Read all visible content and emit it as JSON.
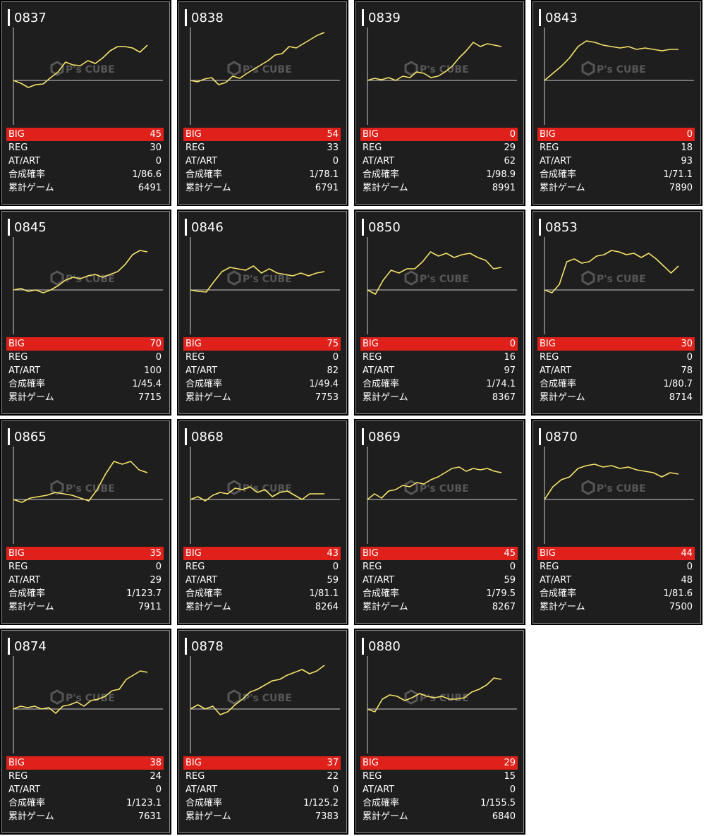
{
  "colors": {
    "line": "#f5e36a",
    "big_bar": "#e0201a",
    "panel": "#1e1e1e",
    "axis": "#cccccc",
    "text": "#ffffff"
  },
  "watermark": {
    "text": "P's CUBE",
    "icon": "cube-logo-icon"
  },
  "labels": {
    "big": "BIG",
    "reg": "REG",
    "at": "AT/ART",
    "rate": "合成確率",
    "games": "累計ゲーム"
  },
  "machines": [
    {
      "id": "0837",
      "big": "45",
      "reg": "30",
      "at": "0",
      "rate": "1/86.6",
      "games": "6491",
      "graph": [
        0,
        -4,
        -10,
        -6,
        -5,
        4,
        12,
        26,
        22,
        21,
        28,
        24,
        32,
        42,
        48,
        48,
        46,
        40,
        50
      ]
    },
    {
      "id": "0838",
      "big": "54",
      "reg": "33",
      "at": "0",
      "rate": "1/78.1",
      "games": "6791",
      "graph": [
        0,
        -2,
        2,
        4,
        -6,
        -3,
        6,
        3,
        10,
        16,
        22,
        28,
        36,
        38,
        48,
        46,
        52,
        58,
        64,
        68
      ]
    },
    {
      "id": "0839",
      "big": "0",
      "reg": "29",
      "at": "62",
      "rate": "1/98.9",
      "games": "8991",
      "graph": [
        0,
        3,
        1,
        4,
        0,
        6,
        4,
        12,
        10,
        4,
        6,
        12,
        20,
        32,
        42,
        54,
        48,
        52,
        50,
        48
      ]
    },
    {
      "id": "0843",
      "big": "0",
      "reg": "18",
      "at": "93",
      "rate": "1/71.1",
      "games": "7890",
      "graph": [
        0,
        10,
        20,
        32,
        48,
        56,
        54,
        50,
        48,
        46,
        48,
        44,
        46,
        44,
        42,
        44,
        44
      ]
    },
    {
      "id": "0845",
      "big": "70",
      "reg": "0",
      "at": "100",
      "rate": "1/45.4",
      "games": "7715",
      "graph": [
        0,
        2,
        -2,
        0,
        -4,
        0,
        6,
        14,
        18,
        16,
        20,
        22,
        18,
        22,
        26,
        36,
        50,
        56,
        54
      ]
    },
    {
      "id": "0846",
      "big": "75",
      "reg": "0",
      "at": "82",
      "rate": "1/49.4",
      "games": "7753",
      "graph": [
        0,
        -2,
        -3,
        12,
        26,
        32,
        30,
        28,
        34,
        24,
        30,
        24,
        22,
        20,
        24,
        20,
        24,
        26
      ]
    },
    {
      "id": "0850",
      "big": "0",
      "reg": "16",
      "at": "97",
      "rate": "1/74.1",
      "games": "8367",
      "graph": [
        0,
        -6,
        14,
        28,
        24,
        30,
        30,
        40,
        54,
        48,
        52,
        46,
        50,
        52,
        46,
        42,
        30,
        32
      ]
    },
    {
      "id": "0853",
      "big": "30",
      "reg": "0",
      "at": "78",
      "rate": "1/80.7",
      "games": "8714",
      "graph": [
        0,
        -4,
        8,
        40,
        44,
        38,
        40,
        48,
        50,
        56,
        54,
        50,
        52,
        46,
        52,
        44,
        34,
        24,
        34
      ]
    },
    {
      "id": "0865",
      "big": "35",
      "reg": "0",
      "at": "29",
      "rate": "1/123.7",
      "games": "7911",
      "graph": [
        0,
        -4,
        2,
        4,
        6,
        10,
        8,
        6,
        2,
        -2,
        14,
        36,
        54,
        50,
        54,
        42,
        38
      ]
    },
    {
      "id": "0868",
      "big": "43",
      "reg": "0",
      "at": "59",
      "rate": "1/81.1",
      "games": "8264",
      "graph": [
        0,
        4,
        -2,
        6,
        10,
        8,
        16,
        14,
        18,
        10,
        14,
        4,
        10,
        12,
        6,
        0,
        8,
        8,
        8
      ]
    },
    {
      "id": "0869",
      "big": "45",
      "reg": "0",
      "at": "59",
      "rate": "1/79.5",
      "games": "8267",
      "graph": [
        0,
        8,
        2,
        12,
        14,
        20,
        18,
        24,
        22,
        28,
        32,
        38,
        44,
        46,
        40,
        44,
        42,
        44,
        40,
        38
      ]
    },
    {
      "id": "0870",
      "big": "44",
      "reg": "0",
      "at": "48",
      "rate": "1/81.6",
      "games": "7500",
      "graph": [
        0,
        18,
        28,
        32,
        44,
        48,
        50,
        46,
        48,
        44,
        46,
        42,
        40,
        38,
        32,
        38,
        36
      ]
    },
    {
      "id": "0874",
      "big": "38",
      "reg": "24",
      "at": "0",
      "rate": "1/123.1",
      "games": "7631",
      "graph": [
        0,
        4,
        2,
        4,
        0,
        2,
        -6,
        4,
        6,
        10,
        4,
        12,
        14,
        18,
        26,
        28,
        42,
        48,
        54,
        52
      ]
    },
    {
      "id": "0878",
      "big": "37",
      "reg": "22",
      "at": "0",
      "rate": "1/125.2",
      "games": "7383",
      "graph": [
        0,
        6,
        0,
        4,
        -8,
        -4,
        6,
        14,
        24,
        28,
        34,
        40,
        42,
        48,
        52,
        56,
        50,
        54,
        62
      ]
    },
    {
      "id": "0880",
      "big": "29",
      "reg": "15",
      "at": "0",
      "rate": "1/155.5",
      "games": "6840",
      "graph": [
        0,
        -4,
        14,
        20,
        18,
        12,
        16,
        22,
        18,
        16,
        18,
        14,
        14,
        16,
        24,
        28,
        34,
        44,
        42
      ]
    }
  ]
}
